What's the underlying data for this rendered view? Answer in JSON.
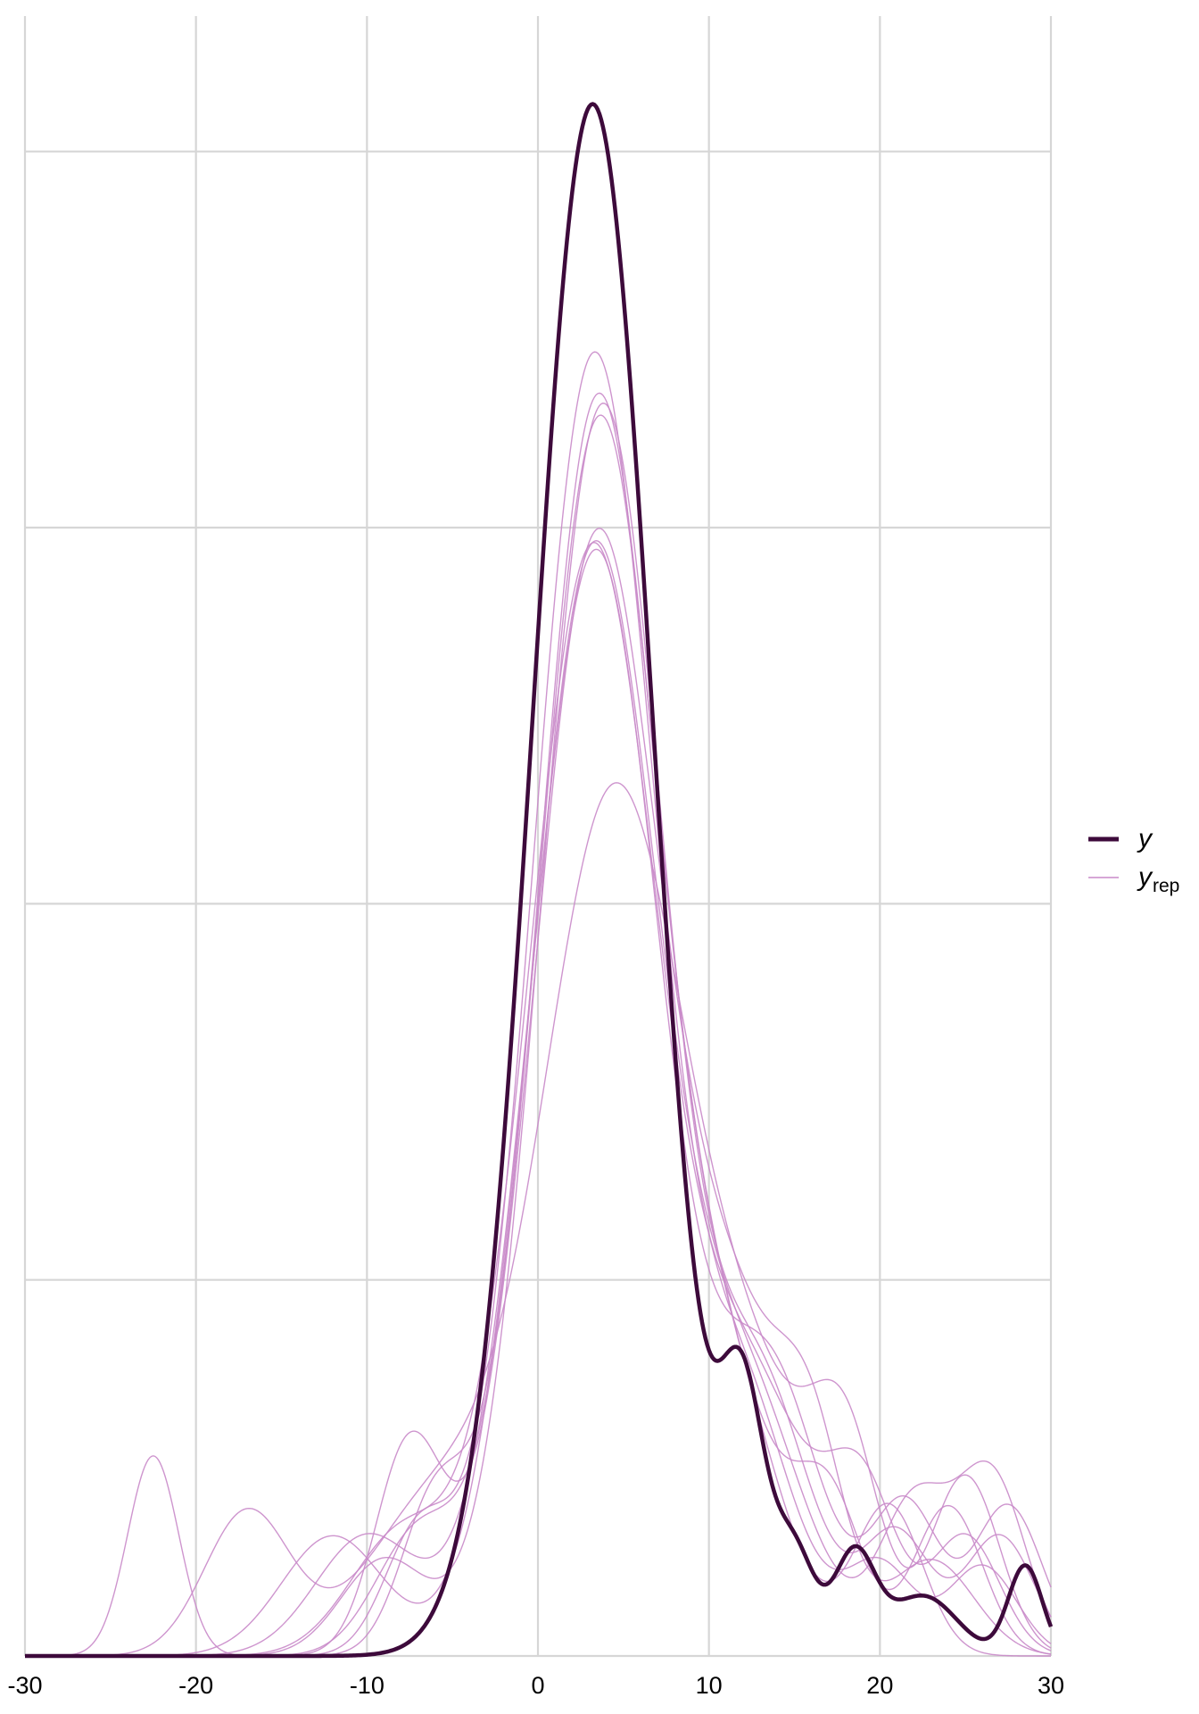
{
  "chart_data": {
    "type": "line",
    "title": "",
    "xlabel": "",
    "ylabel": "",
    "xlim": [
      -30,
      30
    ],
    "ylim": [
      0,
      0.109
    ],
    "x_ticks": [
      -30,
      -20,
      -10,
      0,
      10,
      20,
      30
    ],
    "x_tick_labels": [
      "-30",
      "-20",
      "-10",
      "0",
      "10",
      "20",
      "30"
    ],
    "y_gridlines": [
      0.025,
      0.05,
      0.075,
      0.1
    ],
    "grid": true,
    "legend_position": "right",
    "legend": [
      {
        "label": "y",
        "subscript": "",
        "color": "#3d0a3b",
        "style": "thick"
      },
      {
        "label": "y",
        "subscript": "rep",
        "color": "#c98ac9",
        "style": "thin"
      }
    ],
    "observed": {
      "name": "y",
      "color": "#3d0a3b",
      "components": [
        {
          "w": 0.905,
          "mu": 3.2,
          "sd": 3.5
        },
        {
          "w": 0.05,
          "mu": 12.0,
          "sd": 1.3
        },
        {
          "w": 0.02,
          "mu": 15.0,
          "sd": 1.2
        },
        {
          "w": 0.02,
          "mu": 18.5,
          "sd": 1.2
        },
        {
          "w": 0.02,
          "mu": 22.5,
          "sd": 2.0
        },
        {
          "w": 0.015,
          "mu": 28.5,
          "sd": 1.0
        }
      ]
    },
    "replicates": {
      "name": "y_rep",
      "color": "#c98ac9",
      "draws": [
        {
          "components": [
            {
              "w": 0.78,
              "mu": 3.3,
              "sd": 3.6
            },
            {
              "w": 0.12,
              "mu": 12.0,
              "sd": 3.0
            },
            {
              "w": 0.04,
              "mu": -7.0,
              "sd": 2.0
            },
            {
              "w": 0.03,
              "mu": 20.0,
              "sd": 2.0
            },
            {
              "w": 0.03,
              "mu": 26.0,
              "sd": 2.0
            }
          ]
        },
        {
          "components": [
            {
              "w": 0.75,
              "mu": 3.8,
              "sd": 3.6
            },
            {
              "w": 0.13,
              "mu": 13.0,
              "sd": 3.0
            },
            {
              "w": 0.04,
              "mu": -9.0,
              "sd": 2.5
            },
            {
              "w": 0.04,
              "mu": 21.0,
              "sd": 2.0
            },
            {
              "w": 0.04,
              "mu": 27.0,
              "sd": 2.0
            }
          ]
        },
        {
          "components": [
            {
              "w": 0.73,
              "mu": 3.5,
              "sd": 3.5
            },
            {
              "w": 0.12,
              "mu": 11.0,
              "sd": 3.0
            },
            {
              "w": 0.05,
              "mu": -6.0,
              "sd": 2.0
            },
            {
              "w": 0.05,
              "mu": 17.0,
              "sd": 2.0
            },
            {
              "w": 0.05,
              "mu": 24.0,
              "sd": 2.0
            }
          ]
        },
        {
          "components": [
            {
              "w": 0.7,
              "mu": 3.2,
              "sd": 3.8
            },
            {
              "w": 0.15,
              "mu": 12.5,
              "sd": 3.5
            },
            {
              "w": 0.06,
              "mu": -8.0,
              "sd": 3.0
            },
            {
              "w": 0.05,
              "mu": 19.0,
              "sd": 2.0
            },
            {
              "w": 0.04,
              "mu": 25.0,
              "sd": 2.0
            }
          ]
        },
        {
          "components": [
            {
              "w": 0.7,
              "mu": 3.4,
              "sd": 3.8
            },
            {
              "w": 0.14,
              "mu": 13.5,
              "sd": 3.0
            },
            {
              "w": 0.06,
              "mu": -10.0,
              "sd": 3.0
            },
            {
              "w": 0.05,
              "mu": 21.5,
              "sd": 2.0
            },
            {
              "w": 0.05,
              "mu": 27.5,
              "sd": 2.0
            }
          ]
        },
        {
          "components": [
            {
              "w": 0.69,
              "mu": 3.5,
              "sd": 3.7
            },
            {
              "w": 0.14,
              "mu": 11.5,
              "sd": 3.0
            },
            {
              "w": 0.07,
              "mu": -7.5,
              "sd": 2.0
            },
            {
              "w": 0.06,
              "mu": 16.0,
              "sd": 2.0
            },
            {
              "w": 0.04,
              "mu": 23.0,
              "sd": 2.5
            }
          ]
        },
        {
          "components": [
            {
              "w": 0.68,
              "mu": 3.3,
              "sd": 3.7
            },
            {
              "w": 0.15,
              "mu": 12.0,
              "sd": 3.5
            },
            {
              "w": 0.06,
              "mu": -12.0,
              "sd": 3.0
            },
            {
              "w": 0.05,
              "mu": 22.0,
              "sd": 2.0
            },
            {
              "w": 0.06,
              "mu": 26.5,
              "sd": 2.0
            }
          ]
        },
        {
          "components": [
            {
              "w": 0.6,
              "mu": 4.5,
              "sd": 4.2
            },
            {
              "w": 0.12,
              "mu": 13.0,
              "sd": 3.5
            },
            {
              "w": 0.1,
              "mu": -6.0,
              "sd": 4.0
            },
            {
              "w": 0.06,
              "mu": -17.0,
              "sd": 2.5
            },
            {
              "w": 0.06,
              "mu": 18.0,
              "sd": 2.0
            },
            {
              "w": 0.06,
              "mu": 25.0,
              "sd": 2.0
            }
          ]
        },
        {
          "components": [
            {
              "w": 0.74,
              "mu": 3.6,
              "sd": 3.6
            },
            {
              "w": 0.11,
              "mu": 11.5,
              "sd": 3.0
            },
            {
              "w": 0.05,
              "mu": -22.5,
              "sd": 1.5
            },
            {
              "w": 0.05,
              "mu": -7.0,
              "sd": 2.5
            },
            {
              "w": 0.05,
              "mu": 20.5,
              "sd": 2.0
            }
          ]
        }
      ]
    }
  }
}
